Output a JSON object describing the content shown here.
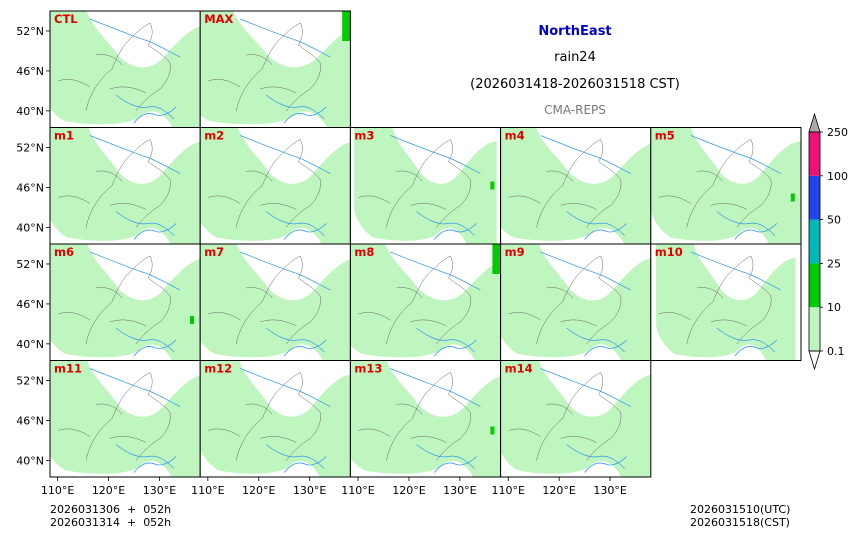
{
  "header": {
    "region": "NorthEast",
    "variable": "rain24",
    "period": "(2026031418-2026031518 CST)",
    "source": "CMA-REPS"
  },
  "footer": {
    "init_utc": "2026031306  +  052h",
    "init_cst": "2026031314  +  052h",
    "valid_utc": "2026031510(UTC)",
    "valid_cst": "2026031518(CST)"
  },
  "colors": {
    "panel_label": "#e00000",
    "title": "#0000cc",
    "land": "#ffffff",
    "rain_light": "#bff5bf",
    "river": "#3399ee",
    "border": "#666666",
    "cbar": [
      "#ffffff",
      "#bff5bf",
      "#00cc00",
      "#00b8b8",
      "#2244ee",
      "#ee1177",
      "#aaaaaa"
    ]
  },
  "chart_data": {
    "type": "heatmap",
    "title": "NorthEast rain24 (2026031418-2026031518 CST)",
    "lon_ticks": [
      "110°E",
      "120°E",
      "130°E"
    ],
    "lon_values": [
      110,
      120,
      130
    ],
    "lat_ticks": [
      "52°N",
      "46°N",
      "40°N"
    ],
    "lat_values": [
      52,
      46,
      40
    ],
    "xlim": [
      108.5,
      138
    ],
    "ylim": [
      37.5,
      55
    ],
    "panels": [
      {
        "label": "CTL",
        "light_rain_coverage": 0.35
      },
      {
        "label": "MAX",
        "light_rain_coverage": 0.45
      },
      {
        "label": "m1",
        "light_rain_coverage": 0.3
      },
      {
        "label": "m2",
        "light_rain_coverage": 0.32
      },
      {
        "label": "m3",
        "light_rain_coverage": 0.2
      },
      {
        "label": "m4",
        "light_rain_coverage": 0.38
      },
      {
        "label": "m5",
        "light_rain_coverage": 0.25
      },
      {
        "label": "m6",
        "light_rain_coverage": 0.33
      },
      {
        "label": "m7",
        "light_rain_coverage": 0.35
      },
      {
        "label": "m8",
        "light_rain_coverage": 0.4
      },
      {
        "label": "m9",
        "light_rain_coverage": 0.3
      },
      {
        "label": "m10",
        "light_rain_coverage": 0.18
      },
      {
        "label": "m11",
        "light_rain_coverage": 0.33
      },
      {
        "label": "m12",
        "light_rain_coverage": 0.28
      },
      {
        "label": "m13",
        "light_rain_coverage": 0.36
      },
      {
        "label": "m14",
        "light_rain_coverage": 0.3
      }
    ],
    "colorbar": {
      "levels": [
        0.1,
        10,
        25,
        50,
        100,
        250
      ],
      "tick_labels": [
        "0.1",
        "10",
        "25",
        "50",
        "100",
        "250"
      ],
      "extend": "both"
    }
  }
}
